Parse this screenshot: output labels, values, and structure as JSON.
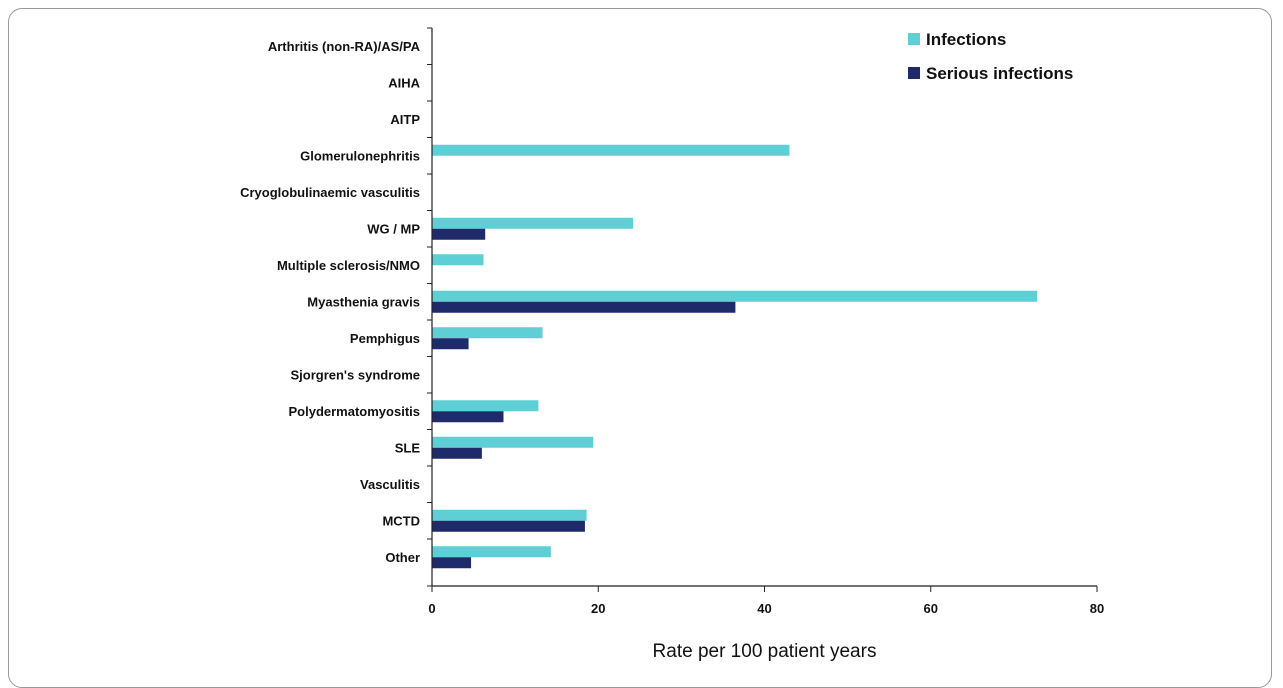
{
  "chart_data": {
    "type": "bar",
    "orientation": "horizontal",
    "categories": [
      "Arthritis (non-RA)/AS/PA",
      "AIHA",
      "AITP",
      "Glomerulonephritis",
      "Cryoglobulinaemic vasculitis",
      "WG / MP",
      "Multiple sclerosis/NMO",
      "Myasthenia gravis",
      "Pemphigus",
      "Sjorgren's syndrome",
      "Polydermatomyositis",
      "SLE",
      "Vasculitis",
      "MCTD",
      "Other"
    ],
    "series": [
      {
        "name": "Infections",
        "color": "#5fcfd6",
        "values": [
          0,
          0,
          0,
          43,
          0,
          24.2,
          6.2,
          72.8,
          13.3,
          0,
          12.8,
          19.4,
          0,
          18.6,
          14.3
        ]
      },
      {
        "name": "Serious infections",
        "color": "#1f2a6b",
        "values": [
          0,
          0,
          0,
          0,
          0,
          6.4,
          0,
          36.5,
          4.4,
          0,
          8.6,
          6.0,
          0,
          18.4,
          4.7
        ]
      }
    ],
    "xlabel": "Rate per 100 patient years",
    "xlim": [
      0,
      80
    ],
    "xticks": [
      "0",
      "20",
      "40",
      "60",
      "80"
    ],
    "grid": false,
    "legend_position": "top-right"
  }
}
